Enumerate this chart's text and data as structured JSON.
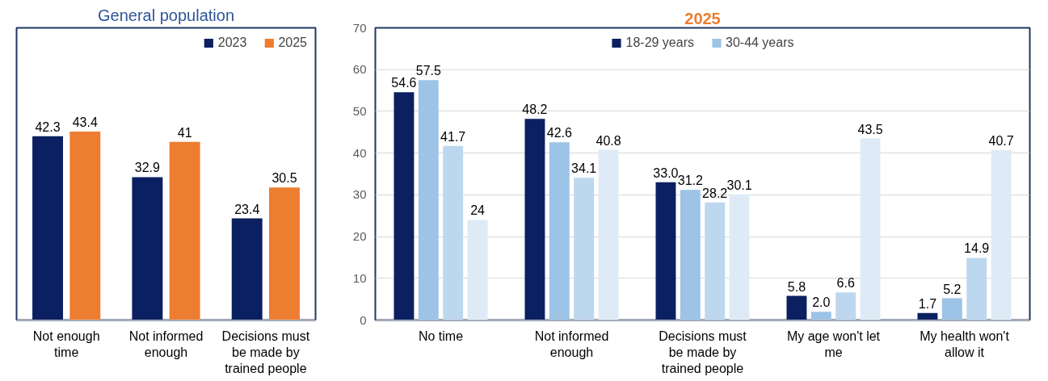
{
  "chart_data": [
    {
      "type": "bar",
      "title": "General population",
      "categories": [
        "Not enough time",
        "Not informed enough",
        "Decisions must be made by trained people"
      ],
      "series": [
        {
          "name": "2023",
          "color": "#0b2060",
          "values": [
            42.3,
            32.9,
            23.4
          ],
          "value_labels": [
            "42.3",
            "32.9",
            "23.4"
          ]
        },
        {
          "name": "2025",
          "color": "#ed7d31",
          "values": [
            43.4,
            41,
            30.5
          ],
          "value_labels": [
            "43.4",
            "41",
            "30.5"
          ]
        }
      ],
      "legend": "top right",
      "grid": false,
      "tick_labels": "x"
    },
    {
      "type": "bar",
      "title": "2025",
      "categories": [
        "No time",
        "Not informed enough",
        "Decisions must be made by trained people",
        "My age won't let me",
        "My health won't allow it"
      ],
      "series": [
        {
          "name": "18-29 years",
          "color": "#0b2060",
          "values": [
            54.6,
            48.2,
            33.0,
            5.8,
            1.7
          ],
          "value_labels": [
            "54.6",
            "48.2",
            "33.0",
            "5.8",
            "1.7"
          ]
        },
        {
          "name": "30-44 years",
          "color": "#9dc3e6",
          "values": [
            57.5,
            42.6,
            31.2,
            2.0,
            5.2
          ],
          "value_labels": [
            "57.5",
            "42.6",
            "31.2",
            "2.0",
            "5.2"
          ]
        },
        {
          "color": "#bdd7ee",
          "values": [
            41.7,
            34.1,
            28.2,
            6.6,
            14.9
          ],
          "value_labels": [
            "41.7",
            "34.1",
            "28.2",
            "6.6",
            "14.9"
          ]
        },
        {
          "color": "#deebf7",
          "values": [
            24,
            40.8,
            30.1,
            43.5,
            40.7
          ],
          "value_labels": [
            "24",
            "40.8",
            "30.1",
            "43.5",
            "40.7"
          ]
        }
      ],
      "ylim": [
        0,
        70
      ],
      "yticks": [
        0,
        10,
        20,
        30,
        40,
        50,
        60,
        70
      ],
      "grid": "y",
      "legend": "top"
    }
  ]
}
